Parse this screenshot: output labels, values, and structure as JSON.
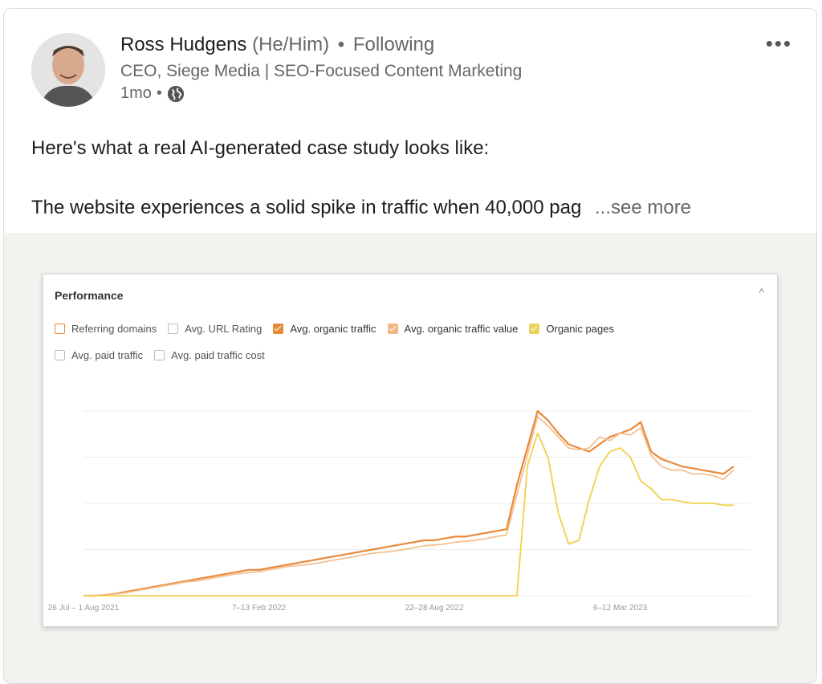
{
  "post": {
    "author_name": "Ross Hudgens",
    "pronouns": "(He/Him)",
    "separator": "•",
    "follow_status": "Following",
    "headline": "CEO, Siege Media | SEO-Focused Content Marketing",
    "time": "1mo",
    "time_separator": "•",
    "more_label": "•••",
    "text_line1": "Here's what a real AI-generated case study looks like:",
    "text_line2": "The website experiences a solid spike in traffic when 40,000 pag",
    "see_more": "...see more"
  },
  "chart_panel": {
    "title": "Performance",
    "collapse_glyph": "^",
    "legend": [
      {
        "label": "Referring domains",
        "checked": false,
        "color": "#e8893a"
      },
      {
        "label": "Avg. URL Rating",
        "checked": false,
        "color": "#cccccc"
      },
      {
        "label": "Avg. organic traffic",
        "checked": true,
        "color": "#e8893a"
      },
      {
        "label": "Avg. organic traffic value",
        "checked": true,
        "color": "#f2b783"
      },
      {
        "label": "Organic pages",
        "checked": true,
        "color": "#ecd25a"
      },
      {
        "label": "Avg. paid traffic",
        "checked": false,
        "color": "#cccccc"
      },
      {
        "label": "Avg. paid traffic cost",
        "checked": false,
        "color": "#cccccc"
      }
    ]
  },
  "chart_data": {
    "type": "line",
    "x_tick_labels": [
      "26 Jul – 1 Aug 2021",
      "7–13 Feb 2022",
      "22–28 Aug 2022",
      "6–12 Mar 2023"
    ],
    "x": [
      0,
      2,
      4,
      6,
      8,
      10,
      12,
      14,
      16,
      18,
      20,
      22,
      24,
      26,
      28,
      30,
      32,
      34,
      36,
      38,
      40,
      42,
      44,
      46,
      48,
      50,
      52,
      54,
      56,
      58,
      60,
      62,
      64,
      66,
      68,
      70,
      72,
      74,
      76,
      78,
      80,
      82,
      84,
      86,
      88,
      90,
      92,
      94,
      96,
      98,
      100,
      102,
      104,
      106,
      108,
      110,
      112,
      114,
      116,
      118,
      120,
      122,
      124,
      126
    ],
    "series": [
      {
        "name": "Avg. organic traffic",
        "color": "#e8893a",
        "values": [
          0,
          0,
          0.2,
          1,
          2,
          3,
          4,
          5,
          6,
          7,
          8,
          9,
          10,
          11,
          12,
          13,
          14,
          14,
          15,
          16,
          17,
          18,
          19,
          20,
          21,
          22,
          23,
          24,
          25,
          26,
          27,
          28,
          29,
          30,
          30,
          31,
          32,
          32,
          33,
          34,
          35,
          36,
          60,
          80,
          100,
          95,
          88,
          82,
          80,
          78,
          82,
          86,
          88,
          90,
          94,
          78,
          74,
          72,
          70,
          69,
          68,
          67,
          66,
          70
        ]
      },
      {
        "name": "Avg. organic traffic value",
        "color": "#f5c08f",
        "values": [
          0,
          0,
          0.1,
          0.8,
          1.5,
          2.5,
          3.5,
          4.5,
          5.5,
          6.5,
          7.5,
          8,
          9,
          10,
          11,
          12,
          12.5,
          13,
          14,
          15,
          16,
          16.5,
          17,
          18,
          19,
          20,
          21,
          22,
          23,
          23.5,
          24,
          25,
          26,
          27,
          27.5,
          28,
          29,
          29.5,
          30,
          31,
          32,
          33,
          55,
          76,
          97,
          92,
          86,
          80,
          79,
          80,
          86,
          84,
          88,
          87,
          91,
          76,
          70,
          68,
          68,
          66,
          66,
          65,
          63,
          68
        ]
      },
      {
        "name": "Organic pages",
        "color": "#f2cf4a",
        "values": [
          0,
          0,
          0,
          0,
          0,
          0,
          0,
          0,
          0,
          0,
          0,
          0,
          0,
          0,
          0,
          0,
          0,
          0,
          0,
          0,
          0,
          0,
          0,
          0,
          0,
          0,
          0,
          0,
          0,
          0,
          0,
          0,
          0,
          0,
          0,
          0,
          0,
          0,
          0,
          0,
          0,
          0,
          0,
          70,
          88,
          75,
          45,
          28,
          30,
          52,
          70,
          78,
          80,
          75,
          62,
          58,
          52,
          52,
          51,
          50,
          50,
          50,
          49,
          49
        ]
      }
    ],
    "ylim": [
      0,
      100
    ],
    "grid": true,
    "legend_placement": "top-left"
  }
}
